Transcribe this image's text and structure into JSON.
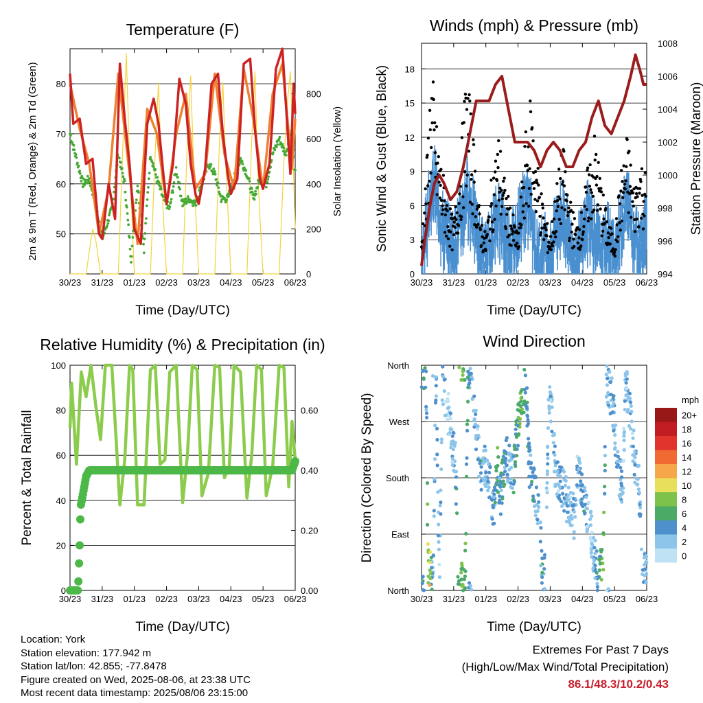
{
  "colors": {
    "temp2m": "#cc2222",
    "temp9m": "#f08030",
    "dewpoint": "#44aa33",
    "solar": "#f5d23a",
    "wind": "#4a90d0",
    "gust": "#000000",
    "pressure": "#9b1c1c",
    "rh": "#8ccc4c",
    "precip": "#4cb848"
  },
  "chart_data": [
    {
      "id": "temperature",
      "type": "line",
      "title": "Temperature (F)",
      "xlabel": "Time (Day/UTC)",
      "ylabel_left": "2m & 9m T (Red, Orange) & 2m Td (Green)",
      "ylabel_right": "Solar Insolation (Yellow)",
      "x_ticks": [
        "30/23",
        "31/23",
        "01/23",
        "02/23",
        "03/23",
        "04/23",
        "05/23",
        "06/23"
      ],
      "ylim_left": [
        42,
        87
      ],
      "yticks_left": [
        50,
        60,
        70,
        80
      ],
      "ylim_right": [
        0,
        1000
      ],
      "yticks_right": [
        0,
        200,
        400,
        600,
        800
      ],
      "grid": true,
      "series": [
        {
          "key": "temp2m",
          "x": [
            0,
            0.1,
            0.3,
            0.5,
            0.7,
            0.9,
            1.0,
            1.2,
            1.4,
            1.55,
            1.7,
            1.85,
            2.0,
            2.2,
            2.4,
            2.6,
            2.75,
            2.9,
            3.0,
            3.2,
            3.4,
            3.6,
            3.75,
            3.9,
            4.0,
            4.2,
            4.4,
            4.6,
            4.75,
            4.9,
            5.0,
            5.2,
            5.4,
            5.6,
            5.75,
            5.9,
            6.0,
            6.2,
            6.4,
            6.6,
            6.75,
            6.85,
            6.95,
            7.0
          ],
          "y": [
            82,
            72,
            73,
            64,
            65,
            50,
            49,
            60,
            53,
            84,
            73,
            64,
            51,
            48,
            72,
            77,
            72,
            62,
            56,
            64,
            81,
            76,
            64,
            58,
            56,
            63,
            80,
            82,
            70,
            62,
            58,
            61,
            84,
            85,
            71,
            61,
            59,
            64,
            83,
            87,
            72,
            62,
            80,
            74
          ]
        },
        {
          "key": "temp9m",
          "x": [
            0,
            0.3,
            0.6,
            0.9,
            1.2,
            1.5,
            1.8,
            2.1,
            2.4,
            2.7,
            3.0,
            3.3,
            3.6,
            3.9,
            4.2,
            4.5,
            4.8,
            5.1,
            5.4,
            5.7,
            6.0,
            6.3,
            6.6,
            6.9,
            7.0
          ],
          "y": [
            80,
            71,
            64,
            50,
            59,
            82,
            65,
            48,
            75,
            70,
            56,
            70,
            78,
            59,
            62,
            82,
            66,
            59,
            83,
            73,
            59,
            78,
            84,
            63,
            73
          ]
        },
        {
          "key": "dewpoint",
          "x": [
            0,
            0.2,
            0.4,
            0.6,
            0.8,
            1.0,
            1.3,
            1.5,
            1.7,
            1.9,
            2.1,
            2.3,
            2.5,
            2.7,
            2.9,
            3.1,
            3.3,
            3.5,
            3.7,
            3.9,
            4.1,
            4.3,
            4.5,
            4.7,
            4.9,
            5.1,
            5.3,
            5.5,
            5.7,
            5.9,
            6.1,
            6.3,
            6.5,
            6.7,
            6.9,
            7.0
          ],
          "y": [
            70,
            65,
            60,
            61,
            56,
            49,
            55,
            66,
            60,
            45,
            60,
            47,
            66,
            61,
            57,
            55,
            63,
            56,
            57,
            56,
            60,
            64,
            62,
            57,
            57,
            61,
            65,
            62,
            57,
            61,
            60,
            66,
            69,
            66,
            71,
            62
          ]
        },
        {
          "key": "solar",
          "x": [
            0,
            0.5,
            0.6,
            0.7,
            0.8,
            0.95,
            1.0,
            1.5,
            1.65,
            1.75,
            1.85,
            2.0,
            2.5,
            2.65,
            2.75,
            2.85,
            3.0,
            3.5,
            3.65,
            3.75,
            3.85,
            4.0,
            4.5,
            4.65,
            4.75,
            4.85,
            5.0,
            5.5,
            5.65,
            5.75,
            5.85,
            6.0,
            6.5,
            6.65,
            6.75,
            6.85,
            7.0
          ],
          "y": [
            0,
            0,
            100,
            200,
            150,
            0,
            0,
            0,
            600,
            980,
            500,
            0,
            0,
            550,
            850,
            400,
            0,
            0,
            600,
            880,
            450,
            0,
            0,
            600,
            850,
            450,
            0,
            0,
            600,
            900,
            400,
            0,
            0,
            500,
            750,
            900,
            200
          ]
        }
      ]
    },
    {
      "id": "winds",
      "type": "scatter",
      "title": "Winds (mph) & Pressure (mb)",
      "xlabel": "Time (Day/UTC)",
      "ylabel_left": "Sonic Wind & Gust (Blue, Black)",
      "ylabel_right": "Station Pressure (Maroon)",
      "x_ticks": [
        "30/23",
        "31/23",
        "01/23",
        "02/23",
        "03/23",
        "04/23",
        "05/23",
        "06/23"
      ],
      "ylim_left": [
        0,
        20.25
      ],
      "yticks_left": [
        0,
        3,
        6,
        9,
        12,
        15,
        18
      ],
      "ylim_right": [
        994,
        1008
      ],
      "yticks_right": [
        994,
        996,
        998,
        1000,
        1002,
        1004,
        1006,
        1008
      ],
      "grid": true,
      "series": [
        {
          "key": "wind",
          "x": [
            0,
            0.2,
            0.4,
            0.6,
            0.8,
            1.0,
            1.2,
            1.4,
            1.6,
            1.8,
            2.0,
            2.2,
            2.4,
            2.6,
            2.8,
            3.0,
            3.2,
            3.4,
            3.6,
            3.8,
            4.0,
            4.2,
            4.4,
            4.6,
            4.8,
            5.0,
            5.2,
            5.4,
            5.6,
            5.8,
            6.0,
            6.2,
            6.4,
            6.6,
            6.8,
            7.0
          ],
          "y": [
            1,
            6,
            9,
            5,
            4,
            3,
            5,
            8,
            6,
            3,
            2,
            4,
            6,
            4,
            3,
            5,
            7,
            6,
            2,
            3,
            2,
            5,
            6,
            3,
            2,
            4,
            6,
            4,
            2,
            4,
            2,
            5,
            7,
            4,
            3,
            5
          ]
        },
        {
          "key": "gust",
          "x": [
            0,
            0.15,
            0.3,
            0.45,
            0.6,
            0.8,
            1.0,
            1.2,
            1.4,
            1.6,
            1.8,
            2.0,
            2.2,
            2.4,
            2.6,
            2.8,
            3.0,
            3.2,
            3.4,
            3.6,
            3.8,
            4.0,
            4.2,
            4.4,
            4.6,
            4.8,
            5.0,
            5.2,
            5.4,
            5.6,
            5.8,
            6.0,
            6.2,
            6.4,
            6.6,
            6.8,
            7.0
          ],
          "y": [
            3,
            8,
            17,
            12,
            9,
            6,
            4,
            9,
            16,
            11,
            5,
            3,
            8,
            11,
            7,
            5,
            3,
            10,
            14,
            9,
            5,
            3,
            7,
            10,
            6,
            4,
            5,
            9,
            11,
            7,
            4,
            3,
            8,
            11,
            7,
            9,
            8
          ]
        },
        {
          "key": "pressure",
          "x": [
            0,
            0.1,
            0.25,
            0.4,
            0.55,
            0.7,
            0.9,
            1.1,
            1.3,
            1.5,
            1.7,
            1.9,
            2.1,
            2.3,
            2.5,
            2.7,
            2.9,
            3.1,
            3.3,
            3.5,
            3.7,
            3.9,
            4.1,
            4.3,
            4.5,
            4.7,
            4.9,
            5.1,
            5.3,
            5.5,
            5.7,
            5.9,
            6.1,
            6.3,
            6.5,
            6.65,
            6.8,
            6.9,
            7.0
          ],
          "y": [
            994.5,
            996,
            998,
            999.5,
            1000,
            999.5,
            998.5,
            999,
            1000.5,
            1002.5,
            1004.5,
            1004.5,
            1004.5,
            1005.5,
            1006,
            1004,
            1002,
            1002,
            1002,
            1001.5,
            1000.5,
            1001.5,
            1002,
            1001.5,
            1000.5,
            1000.5,
            1001.5,
            1002,
            1003.5,
            1004.5,
            1003,
            1002.5,
            1003.5,
            1004.5,
            1006,
            1007.3,
            1006.3,
            1005.5,
            1005.5
          ]
        }
      ]
    },
    {
      "id": "humidity",
      "type": "line",
      "title": "Relative Humidity (%) & Precipitation (in)",
      "xlabel": "Time (Day/UTC)",
      "ylabel_left": "Percent & Total Rainfall",
      "x_ticks": [
        "30/23",
        "31/23",
        "01/23",
        "02/23",
        "03/23",
        "04/23",
        "05/23",
        "06/23"
      ],
      "ylim_left": [
        0,
        100
      ],
      "yticks_left": [
        0,
        20,
        40,
        60,
        80,
        100
      ],
      "ylim_right": [
        0,
        0.75
      ],
      "yticks_right": [
        "0.00",
        "0.20",
        "0.40",
        "0.60"
      ],
      "grid": true,
      "series": [
        {
          "key": "rh",
          "x": [
            0,
            0.05,
            0.2,
            0.35,
            0.5,
            0.65,
            0.8,
            0.95,
            1.1,
            1.3,
            1.55,
            1.7,
            1.85,
            1.95,
            2.1,
            2.3,
            2.5,
            2.65,
            2.8,
            2.95,
            3.1,
            3.3,
            3.5,
            3.65,
            3.8,
            3.95,
            4.1,
            4.3,
            4.5,
            4.65,
            4.8,
            4.95,
            5.1,
            5.3,
            5.5,
            5.65,
            5.8,
            5.95,
            6.1,
            6.3,
            6.5,
            6.65,
            6.8,
            6.9,
            7.0
          ],
          "y": [
            72,
            92,
            56,
            97,
            86,
            100,
            82,
            67,
            100,
            100,
            38,
            58,
            100,
            98,
            38,
            38,
            98,
            100,
            56,
            58,
            97,
            100,
            39,
            60,
            100,
            98,
            42,
            52,
            100,
            99,
            50,
            55,
            100,
            97,
            41,
            60,
            100,
            98,
            42,
            55,
            100,
            99,
            46,
            75,
            58
          ]
        },
        {
          "key": "precip",
          "x": [
            0,
            0.25,
            0.3,
            0.33,
            0.4,
            0.5,
            0.6,
            6.9,
            7.0
          ],
          "y": [
            0,
            0,
            0.15,
            0.28,
            0.32,
            0.38,
            0.4,
            0.4,
            0.43
          ]
        }
      ]
    },
    {
      "id": "direction",
      "type": "scatter",
      "title": "Wind Direction",
      "xlabel": "Time (Day/UTC)",
      "ylabel_left": "Direction (Colored By Speed)",
      "x_ticks": [
        "30/23",
        "31/23",
        "01/23",
        "02/23",
        "03/23",
        "04/23",
        "05/23",
        "06/23"
      ],
      "ylim_left": [
        0,
        360
      ],
      "ytick_values": [
        0,
        90,
        180,
        270,
        360
      ],
      "ytick_labels": [
        "North",
        "East",
        "South",
        "West",
        "North"
      ],
      "grid": true,
      "legend_title": "mph",
      "legend_labels": [
        "0",
        "2",
        "4",
        "6",
        "8",
        "10",
        "12",
        "14",
        "16",
        "18",
        "20+"
      ],
      "legend_colors": [
        "#bfe3f5",
        "#8cc4ea",
        "#4e90cc",
        "#4aaa66",
        "#7dc24a",
        "#e8e05a",
        "#f7a64a",
        "#f06a32",
        "#e0342c",
        "#c01c22",
        "#981818"
      ],
      "series": [
        {
          "key": "direction",
          "x": [
            0.05,
            0.1,
            0.15,
            0.2,
            0.25,
            0.3,
            0.35,
            0.45,
            0.55,
            0.65,
            0.75,
            0.85,
            0.95,
            1.05,
            1.15,
            1.25,
            1.35,
            1.45,
            1.55,
            1.65,
            1.75,
            1.85,
            1.95,
            2.05,
            2.15,
            2.25,
            2.35,
            2.45,
            2.55,
            2.65,
            2.75,
            2.85,
            2.95,
            3.05,
            3.15,
            3.25,
            3.35,
            3.45,
            3.55,
            3.65,
            3.75,
            3.85,
            3.95,
            4.05,
            4.15,
            4.25,
            4.35,
            4.45,
            4.55,
            4.65,
            4.75,
            4.85,
            4.95,
            5.05,
            5.15,
            5.25,
            5.35,
            5.45,
            5.55,
            5.65,
            5.75,
            5.85,
            5.95,
            6.05,
            6.15,
            6.25,
            6.35,
            6.45,
            6.55,
            6.65,
            6.75,
            6.85,
            6.95
          ],
          "y": [
            355,
            340,
            320,
            40,
            30,
            20,
            10,
            350,
            5,
            330,
            300,
            280,
            240,
            210,
            20,
            10,
            5,
            355,
            340,
            280,
            230,
            190,
            200,
            180,
            160,
            130,
            200,
            150,
            190,
            210,
            200,
            180,
            240,
            290,
            310,
            330,
            200,
            180,
            150,
            120,
            40,
            20,
            310,
            280,
            200,
            180,
            170,
            160,
            130,
            140,
            110,
            190,
            170,
            150,
            120,
            100,
            60,
            30,
            40,
            50,
            340,
            320,
            300,
            220,
            180,
            160,
            340,
            300,
            240,
            200,
            180,
            60,
            30
          ],
          "speed": [
            4,
            6,
            3,
            8,
            10,
            6,
            2,
            4,
            2,
            3,
            2,
            1,
            2,
            3,
            6,
            8,
            6,
            5,
            2,
            3,
            2,
            4,
            2,
            3,
            4,
            3,
            6,
            4,
            5,
            3,
            2,
            4,
            5,
            7,
            6,
            4,
            4,
            5,
            3,
            2,
            4,
            3,
            2,
            2,
            3,
            2,
            4,
            2,
            3,
            2,
            3,
            2,
            3,
            4,
            2,
            1,
            3,
            4,
            6,
            7,
            2,
            3,
            4,
            2,
            3,
            2,
            2,
            3,
            2,
            3,
            2,
            4,
            2
          ]
        }
      ]
    }
  ],
  "info": {
    "location": "Location: York",
    "elevation": "Station elevation: 177.942 m",
    "latlon": "Station lat/lon: 42.855; -77.8478",
    "created": "Figure created on Wed, 2025-08-06, at 23:38 UTC",
    "recent": "Most recent data timestamp: 2025/08/06 23:15:00"
  },
  "extremes": {
    "line1": "Extremes For Past 7 Days",
    "line2": "(High/Low/Max Wind/Total Precipitation)",
    "values": "86.1/48.3/10.2/0.43"
  }
}
